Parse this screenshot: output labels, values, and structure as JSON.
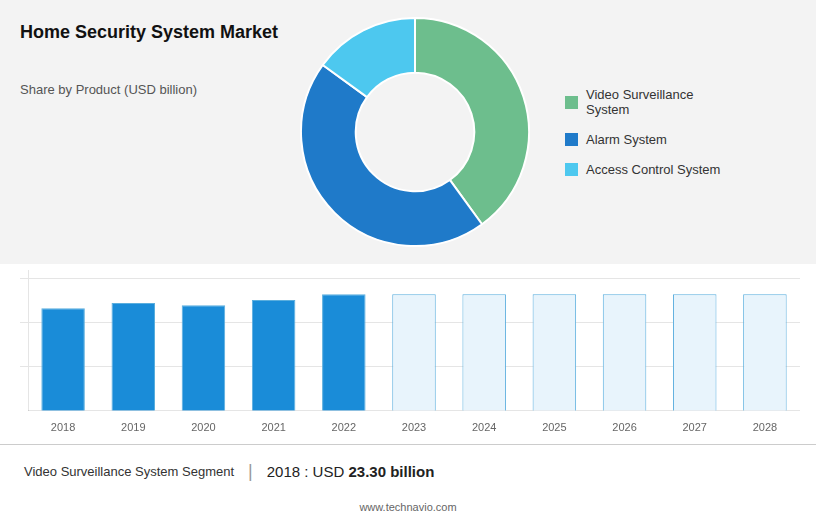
{
  "chart_data": [
    {
      "type": "doughnut",
      "title": "Home Security System Market",
      "subtitle": "Share by Product (USD billion)",
      "categories": [
        "Video Surveillance\nSystem",
        "Alarm System",
        "Access Control System"
      ],
      "values": [
        40,
        45,
        15
      ],
      "colors": [
        "#6dbe8d",
        "#1f7ac9",
        "#4dc8ef"
      ],
      "legend": "right"
    },
    {
      "type": "bar",
      "categories": [
        "2018",
        "2019",
        "2020",
        "2021",
        "2022",
        "2023",
        "2024",
        "2025",
        "2026",
        "2027",
        "2028"
      ],
      "values": [
        23.3,
        24.5,
        24.0,
        25.2,
        26.5,
        26.5,
        26.5,
        26.5,
        26.5,
        26.5,
        26.5
      ],
      "colors": [
        "#1a8cd8",
        "#1a8cd8",
        "#1a8cd8",
        "#1a8cd8",
        "#1a8cd8",
        "#e8f4fc",
        "#e8f4fc",
        "#e8f4fc",
        "#e8f4fc",
        "#e8f4fc",
        "#e8f4fc"
      ],
      "ylim": [
        0,
        32
      ],
      "yticks": [
        10,
        20,
        30
      ],
      "grid": true,
      "tick_labels": "x",
      "annotations": [
        "Video Surveillance System Segment",
        "|",
        "2018 : USD ",
        "23.30 billion",
        "www.technavio.com"
      ]
    }
  ]
}
